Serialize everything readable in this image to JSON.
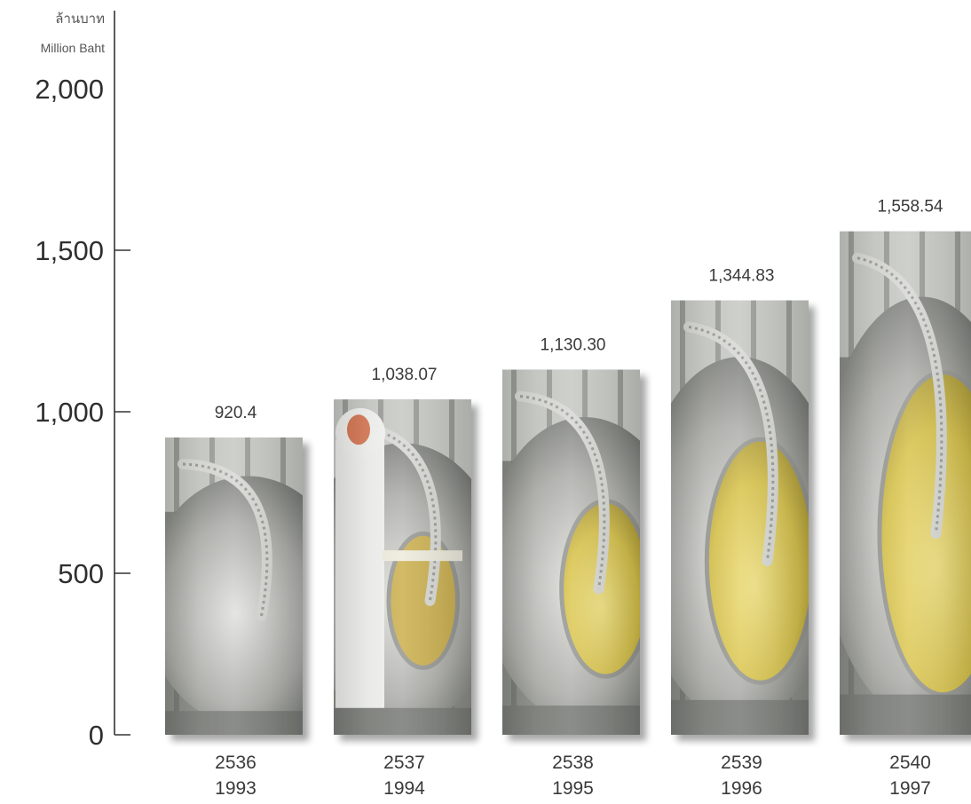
{
  "chart_data": {
    "type": "bar",
    "ylabel_th": "ล้านบาท",
    "ylabel_en": "Million Baht",
    "categories": [
      {
        "th_year": "2536",
        "year": "1993"
      },
      {
        "th_year": "2537",
        "year": "1994"
      },
      {
        "th_year": "2538",
        "year": "1995"
      },
      {
        "th_year": "2539",
        "year": "1996"
      },
      {
        "th_year": "2540",
        "year": "1997"
      }
    ],
    "values": [
      920.4,
      1038.07,
      1130.3,
      1344.83,
      1558.54
    ],
    "value_labels": [
      "920.4",
      "1,038.07",
      "1,130.30",
      "1,344.83",
      "1,558.54"
    ],
    "ylim": [
      0,
      2000
    ],
    "yticks": [
      {
        "value": 0,
        "label": "0"
      },
      {
        "value": 500,
        "label": "500"
      },
      {
        "value": 1000,
        "label": "1,000"
      },
      {
        "value": 1500,
        "label": "1,500"
      },
      {
        "value": 2000,
        "label": "2,000"
      }
    ],
    "grid": false,
    "legend": "none",
    "colors": {
      "axis": "#333333",
      "steel_light": "#e6e6e4",
      "steel_mid": "#a9aaa6",
      "steel_dark": "#5e605c",
      "grain": "#dcc43a",
      "grain_light": "#f0de6a"
    }
  }
}
